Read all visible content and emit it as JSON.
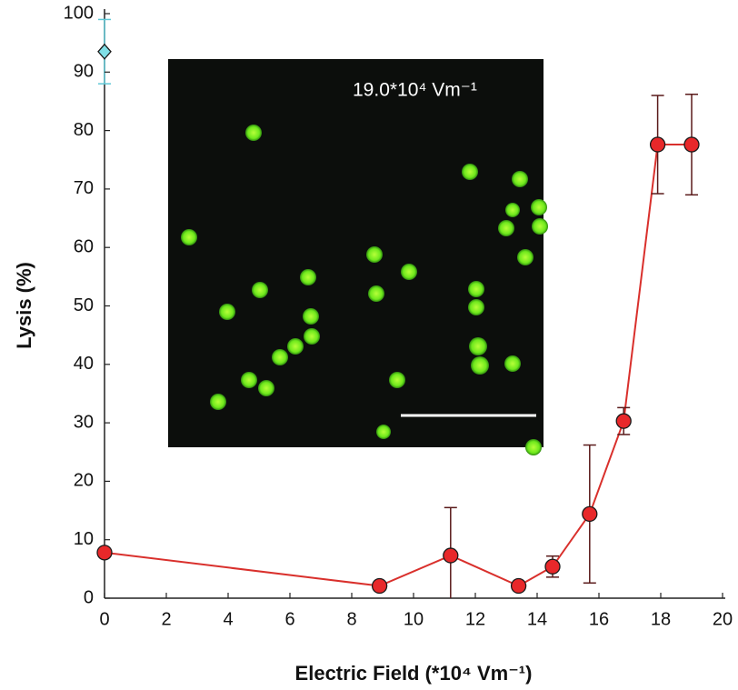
{
  "chart_data": {
    "type": "line",
    "x_label": "Electric Field (*10⁴ Vm⁻¹)",
    "y_label": "Lysis (%)",
    "inset_label": "19.0*10⁴ Vm⁻¹",
    "xlim": [
      0,
      20
    ],
    "ylim": [
      0,
      100
    ],
    "xticks": [
      0,
      2,
      4,
      6,
      8,
      10,
      12,
      14,
      16,
      18,
      20
    ],
    "yticks": [
      0,
      10,
      20,
      30,
      40,
      50,
      60,
      70,
      80,
      90,
      100
    ],
    "series": [
      {
        "color": "#e8282a",
        "line_color": "#d9302c",
        "error_color": "#5a1a1a",
        "marker": "circle",
        "line": true,
        "x": [
          0,
          8.9,
          11.2,
          13.4,
          14.5,
          15.7,
          16.8,
          17.9,
          19.0
        ],
        "values": [
          7.8,
          2.1,
          7.3,
          2.1,
          5.4,
          14.4,
          30.3,
          77.6,
          77.6
        ],
        "errors": [
          0,
          0,
          8.2,
          0,
          1.8,
          11.8,
          2.3,
          8.4,
          8.6
        ]
      },
      {
        "color": "#80dfe6",
        "error_color": "#5fc8d6",
        "marker": "diamond",
        "line": false,
        "x": [
          0
        ],
        "values": [
          93.5
        ],
        "errors": [
          5.5
        ]
      }
    ]
  }
}
